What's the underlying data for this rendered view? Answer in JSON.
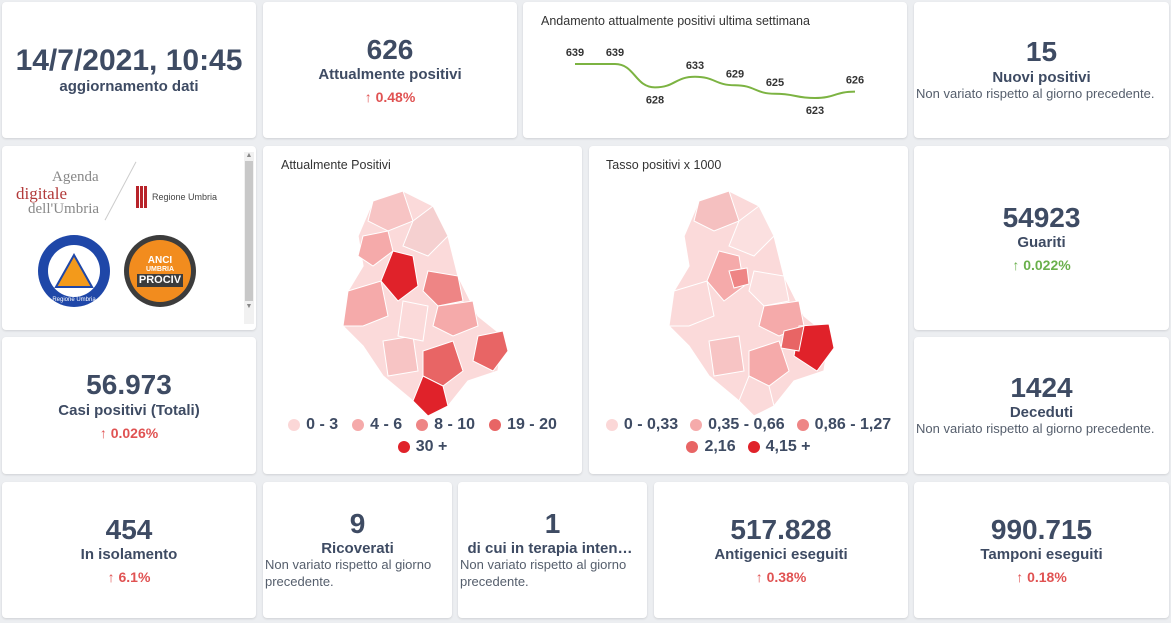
{
  "update": {
    "datetime": "14/7/2021, 10:45",
    "label": "aggiornamento dati"
  },
  "attualmente_positivi": {
    "value": "626",
    "label": "Attualmente positivi",
    "delta": "0.48%",
    "delta_direction": "up"
  },
  "trend": {
    "title": "Andamento attualmente positivi ultima settimana",
    "line_color": "#7cb342",
    "chart_data": {
      "type": "line",
      "title": "Andamento attualmente positivi ultima settimana",
      "values": [
        639,
        639,
        628,
        633,
        629,
        625,
        623,
        626
      ],
      "labels": [
        "639",
        "639",
        "628",
        "633",
        "629",
        "625",
        "623",
        "626"
      ]
    }
  },
  "nuovi_positivi": {
    "value": "15",
    "label": "Nuovi positivi",
    "note": "Non variato rispetto al giorno precedente."
  },
  "logos": {
    "agenda_line1": "Agenda",
    "agenda_line2": "digitale",
    "agenda_line3": "dell'Umbria",
    "regione": "Regione Umbria",
    "protezione": "Protezione Civile",
    "protezione_sub": "Regione Umbria",
    "anci_line1": "ANCI",
    "anci_line2": "UMBRIA",
    "anci_line3": "PROCIV"
  },
  "map_positivi": {
    "title": "Attualmente Positivi",
    "legend": [
      {
        "label": "0 - 3",
        "color": "#fbd7d7"
      },
      {
        "label": "4 - 6",
        "color": "#f5aaaa"
      },
      {
        "label": "8 - 10",
        "color": "#ee8585"
      },
      {
        "label": "19 - 20",
        "color": "#e86565"
      },
      {
        "label": "30 +",
        "color": "#e0222a"
      }
    ]
  },
  "map_tasso": {
    "title": "Tasso positivi x 1000",
    "legend": [
      {
        "label": "0 - 0,33",
        "color": "#fbd7d7"
      },
      {
        "label": "0,35 - 0,66",
        "color": "#f5aaaa"
      },
      {
        "label": "0,86 - 1,27",
        "color": "#ee8585"
      },
      {
        "label": "2,16",
        "color": "#e86565"
      },
      {
        "label": "4,15 +",
        "color": "#e0222a"
      }
    ]
  },
  "guariti": {
    "value": "54923",
    "label": "Guariti",
    "delta": "0.022%",
    "delta_direction": "up"
  },
  "casi_totali": {
    "value": "56.973",
    "label": "Casi positivi (Totali)",
    "delta": "0.026%",
    "delta_direction": "up"
  },
  "deceduti": {
    "value": "1424",
    "label": "Deceduti",
    "note": "Non variato rispetto al giorno precedente."
  },
  "isolamento": {
    "value": "454",
    "label": "In isolamento",
    "delta": "6.1%",
    "delta_direction": "up"
  },
  "ricoverati": {
    "value": "9",
    "label": "Ricoverati",
    "note": "Non variato rispetto al giorno precedente."
  },
  "terapia": {
    "value": "1",
    "label": "di cui in terapia intensiva",
    "note": "Non variato rispetto al giorno precedente."
  },
  "antigenici": {
    "value": "517.828",
    "label": "Antigenici eseguiti",
    "delta": "0.38%",
    "delta_direction": "up"
  },
  "tamponi": {
    "value": "990.715",
    "label": "Tamponi eseguiti",
    "delta": "0.18%",
    "delta_direction": "up"
  },
  "colors": {
    "accent_red": "#e05252",
    "accent_green": "#6ab04c",
    "heading": "#3e4b63"
  }
}
